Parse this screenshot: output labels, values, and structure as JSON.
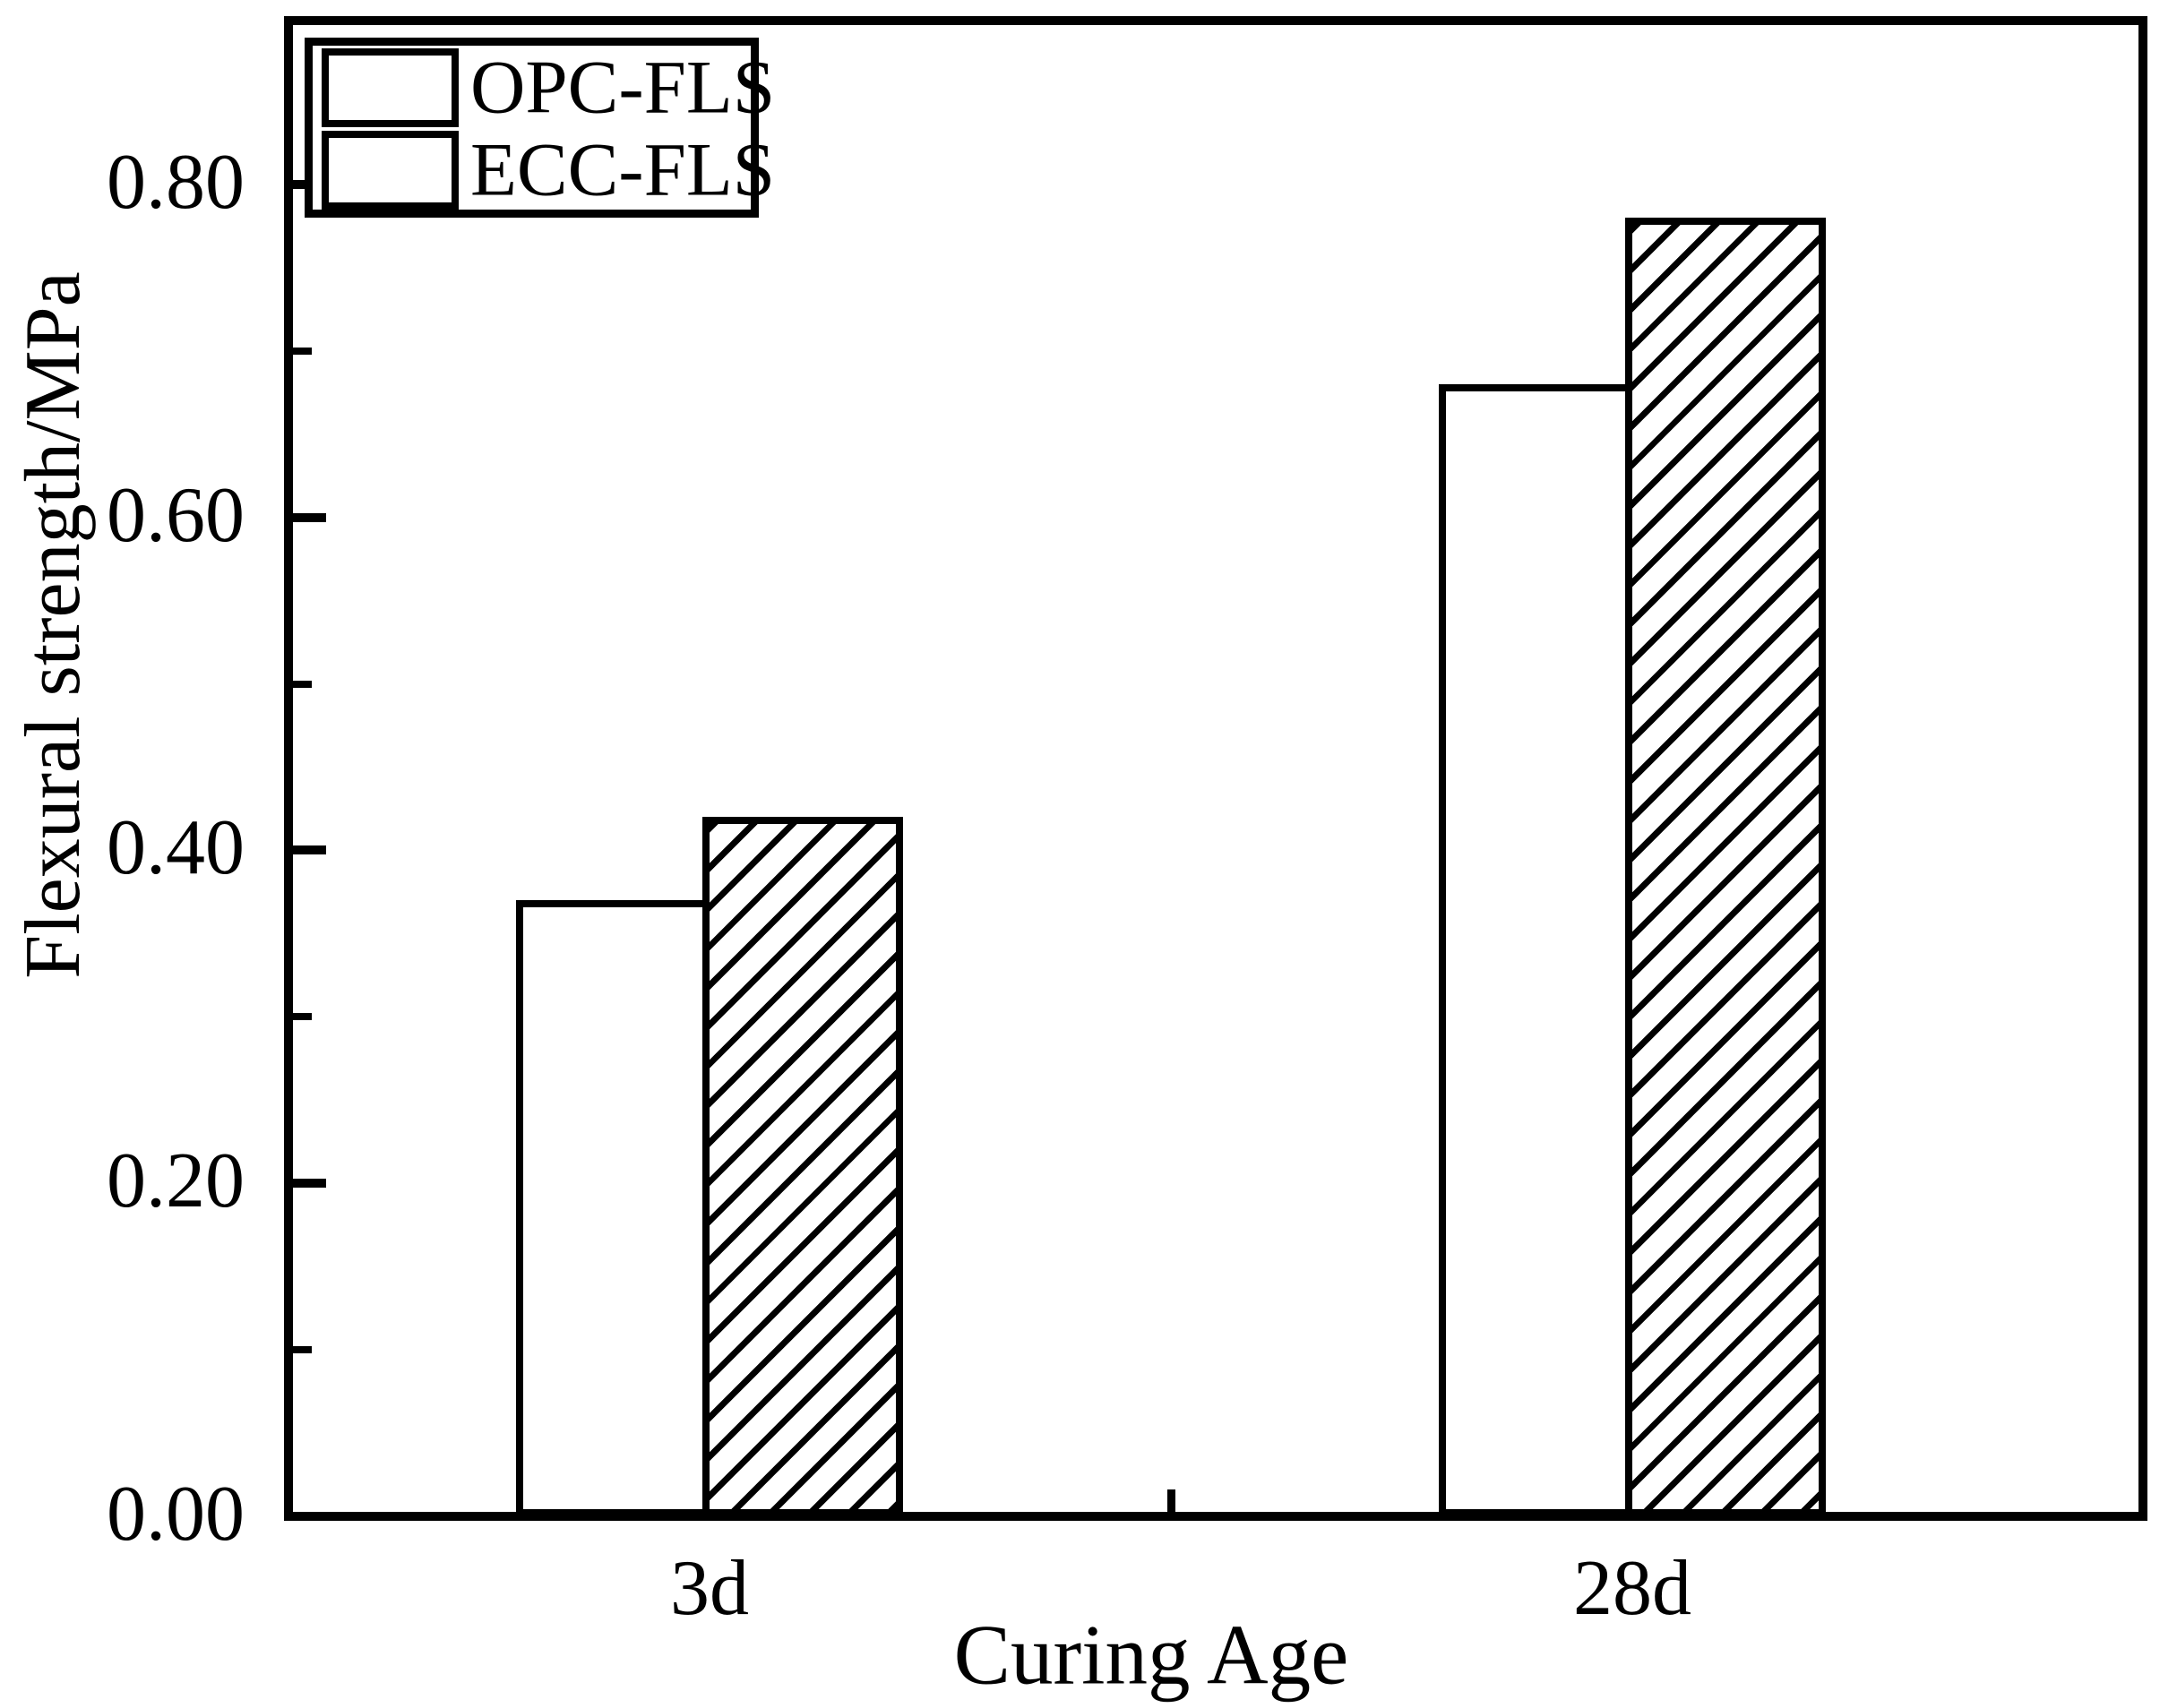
{
  "figure": {
    "background": "#ffffff",
    "ink": "#000000"
  },
  "legend": {
    "items": [
      {
        "label": "OPC-FLS",
        "swatch": "solid-white"
      },
      {
        "label": "ECC-FLS",
        "swatch": "diagonal-hatch"
      }
    ]
  },
  "chart_data": {
    "type": "bar",
    "title": "",
    "xlabel": "Curing Age",
    "ylabel": "Flexural strength/MPa",
    "categories": [
      "3d",
      "28d"
    ],
    "series": [
      {
        "name": "OPC-FLS",
        "fill": "solid-white",
        "values": [
          0.37,
          0.68
        ]
      },
      {
        "name": "ECC-FLS",
        "fill": "diagonal-hatch",
        "values": [
          0.42,
          0.78
        ]
      }
    ],
    "ylim": [
      0.0,
      0.9
    ],
    "yticks_major": [
      {
        "value": 0.0,
        "label": "0.00"
      },
      {
        "value": 0.2,
        "label": "0.20"
      },
      {
        "value": 0.4,
        "label": "0.40"
      },
      {
        "value": 0.6,
        "label": "0.60"
      },
      {
        "value": 0.8,
        "label": "0.80"
      }
    ],
    "yticks_minor": [
      0.1,
      0.3,
      0.5,
      0.7
    ],
    "grid": false,
    "legend_position": "top-left-inside",
    "bar_style": {
      "edge_color": "#000000",
      "opc_fill": "#ffffff",
      "ecc_fill": "diagonal-hatch"
    }
  }
}
